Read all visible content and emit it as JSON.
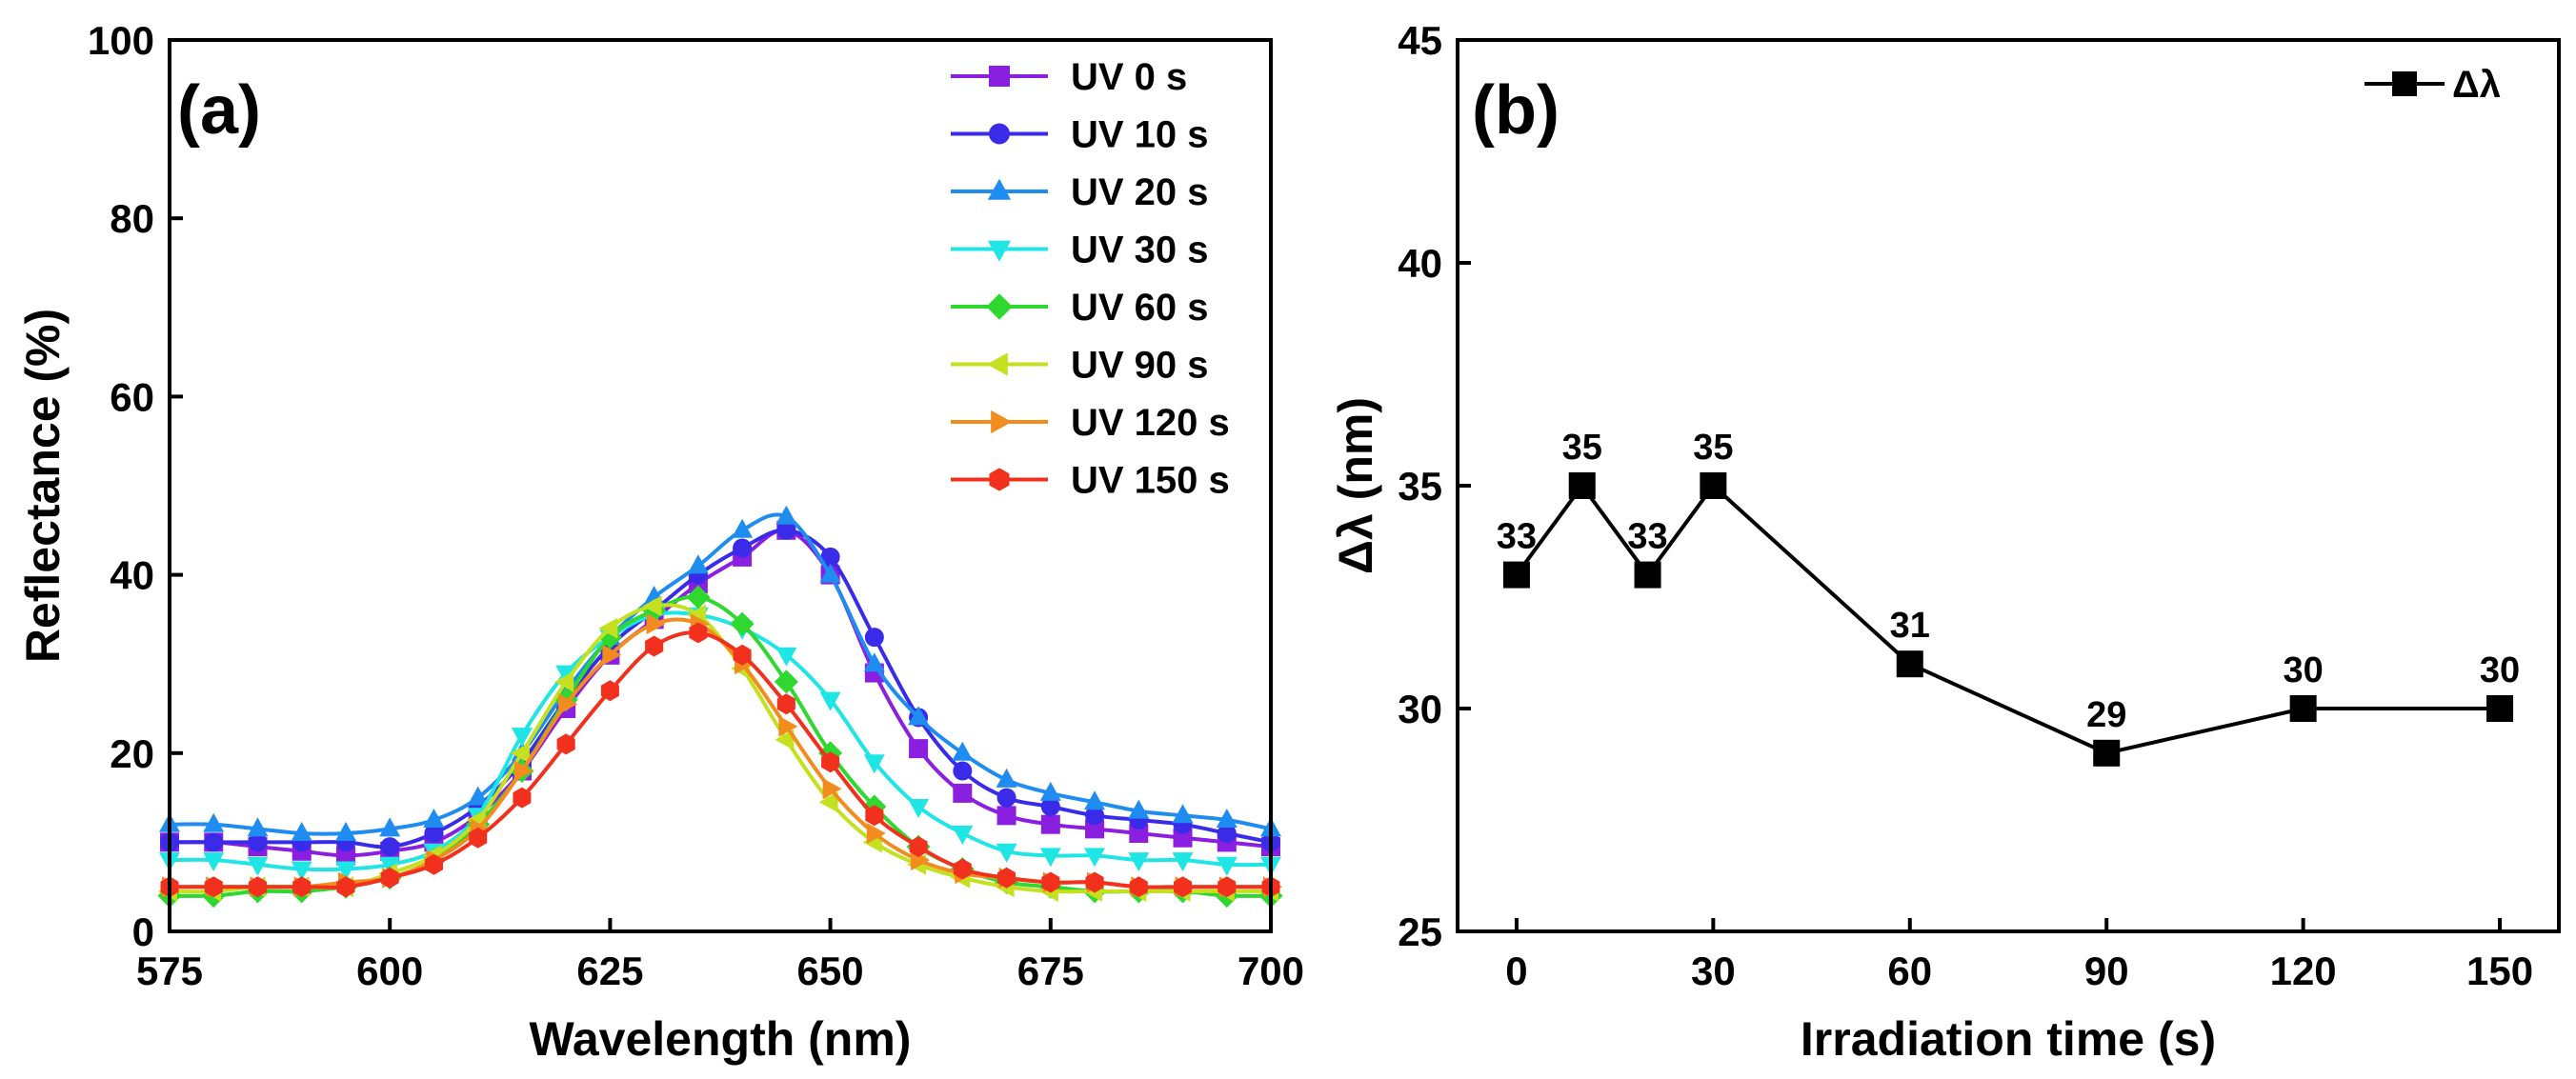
{
  "chart_data": [
    {
      "type": "line",
      "panel_label": "(a)",
      "xlabel": "Wavelength (nm)",
      "ylabel": "Reflectance (%)",
      "xlim": [
        575,
        700
      ],
      "ylim": [
        0,
        100
      ],
      "xticks": [
        575,
        600,
        625,
        650,
        675,
        700
      ],
      "yticks": [
        0,
        20,
        40,
        60,
        80,
        100
      ],
      "x": [
        575,
        580,
        585,
        590,
        595,
        600,
        605,
        610,
        615,
        620,
        625,
        630,
        635,
        640,
        645,
        650,
        655,
        660,
        665,
        670,
        675,
        680,
        685,
        690,
        695,
        700
      ],
      "legend_position": "top-right",
      "series": [
        {
          "name": "UV 0 s",
          "color": "#8B1FE0",
          "marker": "square",
          "values": [
            10,
            10,
            9.5,
            9,
            8.5,
            9,
            10,
            13,
            18,
            25,
            31,
            35,
            39,
            42,
            45,
            40,
            29,
            20.5,
            15.5,
            13,
            12,
            11.5,
            11,
            10.5,
            10,
            9.5
          ]
        },
        {
          "name": "UV 10 s",
          "color": "#3A2BE8",
          "marker": "circle",
          "values": [
            10,
            10,
            10,
            10,
            10,
            9.5,
            11,
            14,
            19,
            26,
            32,
            36,
            40,
            43,
            45,
            42,
            33,
            24,
            18,
            15,
            14,
            13,
            12.5,
            12,
            11,
            10
          ]
        },
        {
          "name": "UV 20 s",
          "color": "#1E8CF0",
          "marker": "triangle-up",
          "values": [
            12,
            12,
            11.5,
            11,
            11,
            11.5,
            12.5,
            15,
            20,
            27,
            33,
            37.5,
            41,
            45,
            46.5,
            40,
            30,
            24,
            20,
            17,
            15.5,
            14.5,
            13.5,
            13,
            12.5,
            11.5
          ]
        },
        {
          "name": "UV 30 s",
          "color": "#1FE5E5",
          "marker": "triangle-down",
          "values": [
            8,
            8,
            7.5,
            7,
            7,
            7.5,
            9,
            13,
            22,
            29,
            33,
            35.5,
            35.5,
            34,
            31,
            26,
            19,
            14,
            11,
            9,
            8.5,
            8.5,
            8,
            8,
            7.5,
            7.5
          ]
        },
        {
          "name": "UV 60 s",
          "color": "#2ED82E",
          "marker": "diamond",
          "values": [
            4,
            4,
            4.5,
            4.5,
            5,
            6,
            8,
            12,
            18,
            26,
            33,
            36,
            37.5,
            34.5,
            28,
            20,
            14,
            9.5,
            7,
            5.5,
            5,
            4.5,
            4.5,
            4.5,
            4,
            4
          ]
        },
        {
          "name": "UV 90 s",
          "color": "#C4E01F",
          "marker": "triangle-left",
          "values": [
            4.5,
            4.5,
            5,
            5,
            5,
            6.5,
            8.5,
            12.5,
            20,
            28,
            34,
            36.5,
            35.5,
            29.5,
            21.5,
            14.5,
            10,
            7.5,
            6,
            5,
            4.5,
            4.5,
            4.5,
            4.5,
            4.5,
            4.5
          ]
        },
        {
          "name": "UV 120 s",
          "color": "#F28C1E",
          "marker": "triangle-right",
          "values": [
            5,
            5,
            5,
            5,
            5.5,
            6,
            8,
            11.5,
            18,
            25.5,
            31,
            34.5,
            34.5,
            30,
            23,
            16,
            11,
            8,
            6.5,
            6,
            5.5,
            5.5,
            5,
            5,
            5,
            5
          ]
        },
        {
          "name": "UV 150 s",
          "color": "#F2301E",
          "marker": "hexagon",
          "values": [
            5,
            5,
            5,
            5,
            5,
            6,
            7.5,
            10.5,
            15,
            21,
            27,
            32,
            33.5,
            31,
            25.5,
            19,
            13,
            9.5,
            7,
            6,
            5.5,
            5.5,
            5,
            5,
            5,
            5
          ]
        }
      ]
    },
    {
      "type": "line",
      "panel_label": "(b)",
      "xlabel": "Irradiation time (s)",
      "ylabel": "Δλ (nm)",
      "xlim": [
        -9,
        159
      ],
      "ylim": [
        25,
        45
      ],
      "xticks": [
        0,
        30,
        60,
        90,
        120,
        150
      ],
      "yticks": [
        25,
        30,
        35,
        40,
        45
      ],
      "legend_position": "top-right",
      "series": [
        {
          "name": "Δλ",
          "color": "#000000",
          "marker": "square",
          "x": [
            0,
            10,
            20,
            30,
            60,
            90,
            120,
            150
          ],
          "values": [
            33,
            35,
            33,
            35,
            31,
            29,
            30,
            30
          ],
          "data_labels": [
            "33",
            "35",
            "33",
            "35",
            "31",
            "29",
            "30",
            "30"
          ]
        }
      ]
    }
  ]
}
